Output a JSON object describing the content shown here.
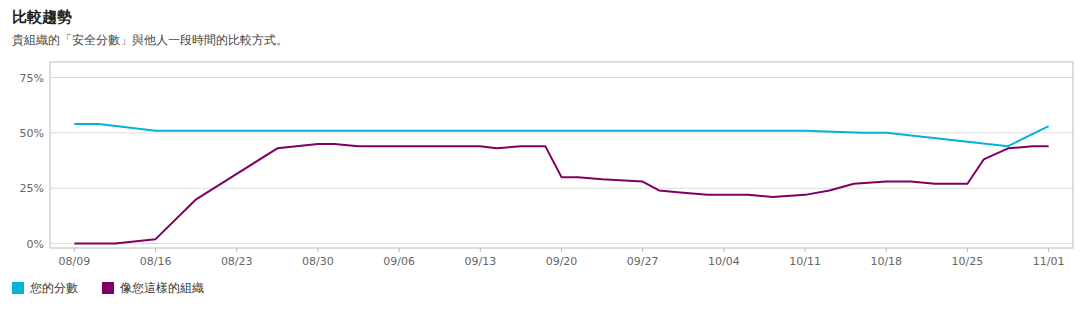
{
  "chart_data": {
    "type": "line",
    "title": "比較趨勢",
    "subtitle": "貴組織的「安全分數」與他人一段時間的比較方式。",
    "xlim": [
      -0.3,
      12.3
    ],
    "xticks": [
      {
        "value": 0,
        "label": "08/09"
      },
      {
        "value": 1,
        "label": "08/16"
      },
      {
        "value": 2,
        "label": "08/23"
      },
      {
        "value": 3,
        "label": "08/30"
      },
      {
        "value": 4,
        "label": "09/06"
      },
      {
        "value": 5,
        "label": "09/13"
      },
      {
        "value": 6,
        "label": "09/20"
      },
      {
        "value": 7,
        "label": "09/27"
      },
      {
        "value": 8,
        "label": "10/04"
      },
      {
        "value": 9,
        "label": "10/11"
      },
      {
        "value": 10,
        "label": "10/18"
      },
      {
        "value": 11,
        "label": "10/25"
      },
      {
        "value": 12,
        "label": "11/01"
      }
    ],
    "ylim": [
      -2,
      82
    ],
    "yticks": [
      {
        "value": 0,
        "label": "0%"
      },
      {
        "value": 25,
        "label": "25%"
      },
      {
        "value": 50,
        "label": "50%"
      },
      {
        "value": 75,
        "label": "75%"
      }
    ],
    "grid": true,
    "legend": "lower left",
    "series": [
      {
        "name": "您的分數",
        "color": "#00b4d8",
        "x": [
          0.0,
          0.3,
          1.0,
          2.0,
          3.0,
          4.0,
          5.0,
          6.0,
          7.0,
          8.0,
          9.0,
          9.7,
          10.0,
          11.0,
          11.5,
          12.0
        ],
        "values": [
          54,
          54,
          51,
          51,
          51,
          51,
          51,
          51,
          51,
          51,
          51,
          50,
          50,
          46,
          44,
          53
        ]
      },
      {
        "name": "像您這樣的組織",
        "color": "#800060",
        "x": [
          0.0,
          0.5,
          1.0,
          1.5,
          2.5,
          3.0,
          3.2,
          3.5,
          3.8,
          4.0,
          4.3,
          4.7,
          5.0,
          5.2,
          5.5,
          5.8,
          6.0,
          6.2,
          6.5,
          7.0,
          7.2,
          7.5,
          7.8,
          8.0,
          8.3,
          8.6,
          9.0,
          9.3,
          9.6,
          10.0,
          10.3,
          10.6,
          11.0,
          11.2,
          11.5,
          11.8,
          12.0
        ],
        "values": [
          0,
          0,
          2,
          20,
          43,
          45,
          45,
          44,
          44,
          44,
          44,
          44,
          44,
          43,
          44,
          44,
          30,
          30,
          29,
          28,
          24,
          23,
          22,
          22,
          22,
          21,
          22,
          24,
          27,
          28,
          28,
          27,
          27,
          38,
          43,
          44,
          44
        ]
      }
    ]
  }
}
